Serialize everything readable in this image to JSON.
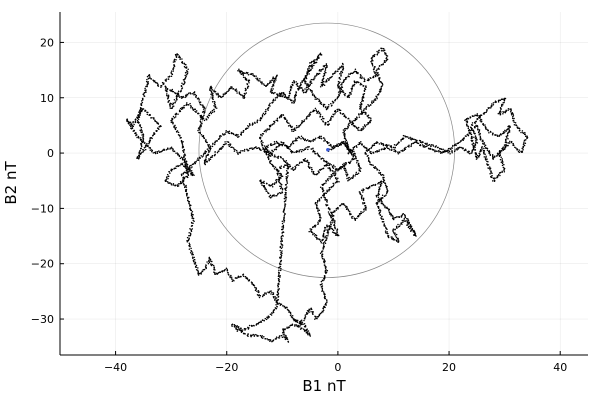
{
  "chart_data": {
    "type": "scatter",
    "title": "",
    "xlabel": "B1 nT",
    "ylabel": "B2 nT",
    "xlim": [
      -50,
      45
    ],
    "ylim": [
      -36.5,
      25.5
    ],
    "xticks": [
      -40,
      -20,
      0,
      20,
      40
    ],
    "yticks": [
      -30,
      -20,
      -10,
      0,
      10,
      20
    ],
    "grid": true,
    "legend": "none",
    "colors": {
      "trace": "#000000",
      "circle": "#888888",
      "marker": "#3b5bd6"
    },
    "circle": {
      "cx": -2,
      "cy": 0.5,
      "r": 23
    },
    "center_marker": {
      "x": -1.8,
      "y": 0.6
    },
    "path": [
      [
        -1.5,
        0.5
      ],
      [
        1,
        2
      ],
      [
        3,
        -1
      ],
      [
        0,
        -3
      ],
      [
        -3,
        -1
      ],
      [
        -5,
        1
      ],
      [
        -8,
        0
      ],
      [
        -10,
        2
      ],
      [
        -12,
        0
      ],
      [
        -15,
        1
      ],
      [
        -18,
        0
      ],
      [
        -20,
        2
      ],
      [
        -22,
        0
      ],
      [
        -24,
        -2
      ],
      [
        -23,
        1
      ],
      [
        -25,
        4
      ],
      [
        -24,
        8
      ],
      [
        -26,
        11
      ],
      [
        -28,
        10
      ],
      [
        -31,
        12
      ],
      [
        -30,
        8
      ],
      [
        -28,
        12
      ],
      [
        -27,
        15
      ],
      [
        -29,
        18
      ],
      [
        -30,
        14
      ],
      [
        -32,
        12
      ],
      [
        -34,
        14
      ],
      [
        -35,
        10
      ],
      [
        -36,
        6
      ],
      [
        -35,
        3
      ],
      [
        -36,
        -1
      ],
      [
        -34,
        2
      ],
      [
        -32,
        5
      ],
      [
        -35,
        8
      ],
      [
        -37,
        5
      ],
      [
        -38,
        6
      ],
      [
        -36,
        3
      ],
      [
        -33,
        0
      ],
      [
        -30,
        1
      ],
      [
        -28,
        -1
      ],
      [
        -26,
        -4
      ],
      [
        -28,
        -2
      ],
      [
        -30,
        -3
      ],
      [
        -31,
        -5
      ],
      [
        -29,
        -6
      ],
      [
        -27,
        -4
      ],
      [
        -28,
        2
      ],
      [
        -30,
        6
      ],
      [
        -27,
        9
      ],
      [
        -24,
        6
      ],
      [
        -22,
        8
      ],
      [
        -23,
        12
      ],
      [
        -21,
        10
      ],
      [
        -19,
        12
      ],
      [
        -17,
        10
      ],
      [
        -16,
        13
      ],
      [
        -18,
        15
      ],
      [
        -15,
        14
      ],
      [
        -13,
        12
      ],
      [
        -11,
        14
      ],
      [
        -12,
        11
      ],
      [
        -9,
        10
      ],
      [
        -8,
        13
      ],
      [
        -6,
        11
      ],
      [
        -4,
        14
      ],
      [
        -2,
        16
      ],
      [
        -3,
        12
      ],
      [
        -1,
        14
      ],
      [
        1,
        16
      ],
      [
        0,
        12
      ],
      [
        2,
        10
      ],
      [
        3,
        13
      ],
      [
        5,
        12
      ],
      [
        4,
        8
      ],
      [
        6,
        6
      ],
      [
        4,
        4
      ],
      [
        2,
        6
      ],
      [
        0,
        8
      ],
      [
        -2,
        5
      ],
      [
        -4,
        8
      ],
      [
        -6,
        6
      ],
      [
        -8,
        4
      ],
      [
        -10,
        7
      ],
      [
        -12,
        5
      ],
      [
        -14,
        3
      ],
      [
        -13,
        0
      ],
      [
        -10,
        -1
      ],
      [
        -8,
        -3
      ],
      [
        -6,
        -1
      ],
      [
        -4,
        -4
      ],
      [
        -2,
        -2
      ],
      [
        0,
        -5
      ],
      [
        -2,
        -7
      ],
      [
        -4,
        -9
      ],
      [
        -3,
        -12
      ],
      [
        -5,
        -14
      ],
      [
        -3,
        -16
      ],
      [
        -2,
        -13
      ],
      [
        0,
        -15
      ],
      [
        -1,
        -11
      ],
      [
        1,
        -9
      ],
      [
        3,
        -12
      ],
      [
        5,
        -10
      ],
      [
        4,
        -7
      ],
      [
        6,
        -6
      ],
      [
        8,
        -5
      ],
      [
        7,
        -8
      ],
      [
        9,
        -10
      ],
      [
        10,
        -12
      ],
      [
        12,
        -11
      ],
      [
        13,
        -13
      ],
      [
        14,
        -15
      ],
      [
        12,
        -12
      ],
      [
        10,
        -14
      ],
      [
        11,
        -16
      ],
      [
        9,
        -15
      ],
      [
        8,
        -12
      ],
      [
        7,
        -9
      ],
      [
        9,
        -7
      ],
      [
        8,
        -4
      ],
      [
        6,
        -2
      ],
      [
        5,
        0
      ],
      [
        7,
        2
      ],
      [
        10,
        1
      ],
      [
        12,
        3
      ],
      [
        15,
        2
      ],
      [
        18,
        1
      ],
      [
        20,
        0
      ],
      [
        22,
        1
      ],
      [
        24,
        0
      ],
      [
        25,
        2
      ],
      [
        24,
        5
      ],
      [
        26,
        7
      ],
      [
        28,
        9
      ],
      [
        30,
        10
      ],
      [
        29,
        7
      ],
      [
        31,
        8
      ],
      [
        32,
        5
      ],
      [
        34,
        3
      ],
      [
        33,
        0
      ],
      [
        31,
        2
      ],
      [
        29,
        0
      ],
      [
        30,
        -3
      ],
      [
        28,
        -5
      ],
      [
        27,
        -2
      ],
      [
        26,
        1
      ],
      [
        25,
        -1
      ],
      [
        24,
        3
      ],
      [
        23,
        6
      ],
      [
        25,
        7
      ],
      [
        27,
        4
      ],
      [
        29,
        3
      ],
      [
        31,
        5
      ],
      [
        30,
        1
      ],
      [
        28,
        -1
      ],
      [
        26,
        2
      ],
      [
        25,
        5
      ],
      [
        22,
        2
      ],
      [
        19,
        0
      ],
      [
        16,
        1
      ],
      [
        14,
        2
      ],
      [
        11,
        0
      ],
      [
        9,
        1
      ],
      [
        6,
        0
      ],
      [
        4,
        2
      ],
      [
        2,
        0
      ],
      [
        1,
        4
      ],
      [
        3,
        6
      ],
      [
        5,
        8
      ],
      [
        7,
        10
      ],
      [
        8,
        12
      ],
      [
        7,
        15
      ],
      [
        9,
        17
      ],
      [
        8,
        19
      ],
      [
        6,
        17
      ],
      [
        7,
        14
      ],
      [
        5,
        13
      ],
      [
        3,
        15
      ],
      [
        1,
        13
      ],
      [
        0,
        10
      ],
      [
        -2,
        8
      ],
      [
        -4,
        10
      ],
      [
        -6,
        13
      ],
      [
        -5,
        16
      ],
      [
        -3,
        18
      ],
      [
        -5,
        15
      ],
      [
        -7,
        12
      ],
      [
        -8,
        9
      ],
      [
        -10,
        11
      ],
      [
        -12,
        9
      ],
      [
        -14,
        6
      ],
      [
        -16,
        5
      ],
      [
        -18,
        3
      ],
      [
        -20,
        4
      ],
      [
        -22,
        2
      ],
      [
        -24,
        0
      ],
      [
        -26,
        -2
      ],
      [
        -28,
        -4
      ],
      [
        -27,
        -8
      ],
      [
        -26,
        -12
      ],
      [
        -27,
        -16
      ],
      [
        -26,
        -19
      ],
      [
        -25,
        -22
      ],
      [
        -24,
        -21
      ],
      [
        -23,
        -19
      ],
      [
        -22,
        -22
      ],
      [
        -20,
        -21
      ],
      [
        -19,
        -23
      ],
      [
        -17,
        -22
      ],
      [
        -15,
        -24
      ],
      [
        -14,
        -26
      ],
      [
        -12,
        -25
      ],
      [
        -11,
        -27
      ],
      [
        -9,
        -28
      ],
      [
        -8,
        -30
      ],
      [
        -7,
        -31
      ],
      [
        -6,
        -30
      ],
      [
        -5,
        -28
      ],
      [
        -4,
        -30
      ],
      [
        -3,
        -29
      ],
      [
        -2,
        -27
      ],
      [
        -3,
        -24
      ],
      [
        -2,
        -21
      ],
      [
        -3,
        -18
      ],
      [
        -2,
        -15
      ],
      [
        -1,
        -12
      ],
      [
        -2,
        -9
      ],
      [
        -3,
        -6
      ],
      [
        -1,
        -4
      ],
      [
        1,
        -2
      ],
      [
        2,
        -5
      ],
      [
        4,
        -3
      ],
      [
        3,
        0
      ],
      [
        1,
        2
      ],
      [
        -1,
        1
      ],
      [
        -3,
        3
      ],
      [
        -5,
        2
      ],
      [
        -7,
        3
      ],
      [
        -9,
        1
      ],
      [
        -11,
        2
      ],
      [
        -13,
        1
      ],
      [
        -12,
        -2
      ],
      [
        -10,
        -4
      ],
      [
        -12,
        -6
      ],
      [
        -14,
        -5
      ],
      [
        -12,
        -8
      ],
      [
        -10,
        -7
      ],
      [
        -11,
        -3
      ],
      [
        -9,
        -2
      ],
      [
        -11,
        -28
      ],
      [
        -13,
        -30
      ],
      [
        -15,
        -31
      ],
      [
        -17,
        -32
      ],
      [
        -19,
        -31
      ],
      [
        -18,
        -32
      ],
      [
        -16,
        -33
      ],
      [
        -14,
        -33
      ],
      [
        -12,
        -34
      ],
      [
        -10,
        -33
      ],
      [
        -9,
        -34
      ],
      [
        -10,
        -32
      ],
      [
        -8,
        -31
      ],
      [
        -6,
        -32
      ],
      [
        -5,
        -33
      ],
      [
        -6,
        -31
      ],
      [
        -8,
        -30
      ]
    ]
  }
}
